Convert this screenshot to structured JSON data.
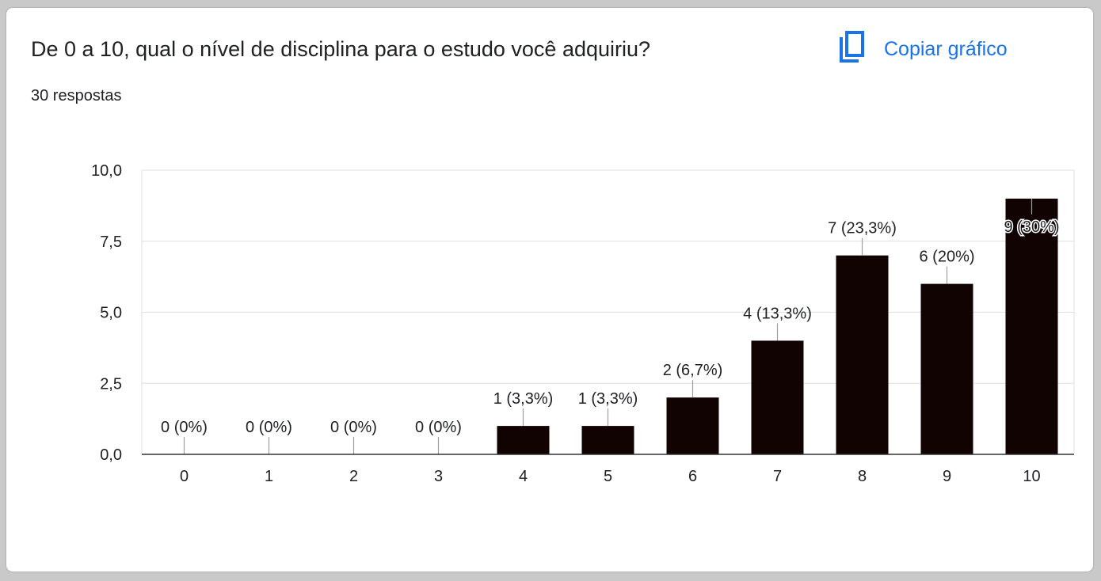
{
  "header": {
    "title": "De 0 a 10, qual o nível de disciplina para o estudo você adquiriu?",
    "subtitle": "30 respostas",
    "copy_label": "Copiar gráfico",
    "copy_icon": "copy-icon",
    "accent_color": "#1a73e8"
  },
  "chart_data": {
    "type": "bar",
    "categories": [
      "0",
      "1",
      "2",
      "3",
      "4",
      "5",
      "6",
      "7",
      "8",
      "9",
      "10"
    ],
    "values": [
      0,
      0,
      0,
      0,
      1,
      1,
      2,
      4,
      7,
      6,
      9
    ],
    "data_labels": [
      "0 (0%)",
      "0 (0%)",
      "0 (0%)",
      "0 (0%)",
      "1 (3,3%)",
      "1 (3,3%)",
      "2 (6,7%)",
      "4 (13,3%)",
      "7 (23,3%)",
      "6 (20%)",
      "9 (30%)"
    ],
    "yticks": [
      0,
      2.5,
      5,
      7.5,
      10
    ],
    "ytick_labels": [
      "0,0",
      "2,5",
      "5,0",
      "7,5",
      "10,0"
    ],
    "ylim": [
      0,
      10
    ],
    "grid": true,
    "bar_color": "#120303",
    "title": "",
    "xlabel": "",
    "ylabel": ""
  }
}
